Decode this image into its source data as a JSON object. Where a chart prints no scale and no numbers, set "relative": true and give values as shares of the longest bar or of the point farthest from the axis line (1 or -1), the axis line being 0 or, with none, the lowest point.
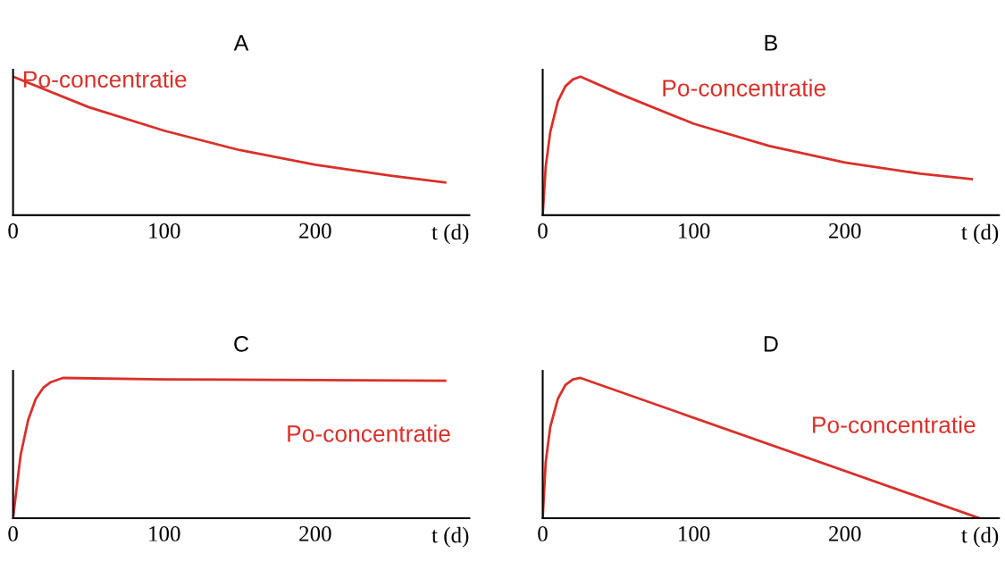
{
  "chart_data": [
    {
      "type": "line",
      "title": "A",
      "xlabel": "t (d)",
      "relative": true,
      "xlim": [
        0,
        302
      ],
      "xticks": [
        0,
        100,
        200
      ],
      "grid": false,
      "legend": false,
      "tick_labels": "x",
      "series": [
        {
          "name": "Po-concentratie",
          "color": "#d9302a",
          "x": [
            0,
            50,
            100,
            150,
            200,
            250,
            286
          ],
          "values": [
            1,
            0.78,
            0.61,
            0.47,
            0.365,
            0.285,
            0.236
          ]
        }
      ]
    },
    {
      "type": "line",
      "title": "B",
      "xlabel": "t (d)",
      "relative": true,
      "xlim": [
        0,
        302
      ],
      "xticks": [
        0,
        100,
        200
      ],
      "grid": false,
      "legend": false,
      "tick_labels": "x",
      "series": [
        {
          "name": "Po-concentratie",
          "color": "#d9302a",
          "x": [
            0,
            2,
            5,
            10,
            15,
            20,
            25,
            50,
            100,
            150,
            200,
            250,
            284
          ],
          "values": [
            0,
            0.35,
            0.6,
            0.82,
            0.93,
            0.98,
            1,
            0.88,
            0.66,
            0.5,
            0.38,
            0.3,
            0.26
          ]
        }
      ]
    },
    {
      "type": "line",
      "title": "C",
      "xlabel": "t (d)",
      "relative": true,
      "xlim": [
        0,
        302
      ],
      "xticks": [
        0,
        100,
        200
      ],
      "grid": false,
      "legend": false,
      "tick_labels": "x",
      "series": [
        {
          "name": "Po-concentratie",
          "color": "#d9302a",
          "x": [
            0,
            5,
            10,
            15,
            20,
            25,
            33,
            100,
            200,
            286
          ],
          "values": [
            0,
            0.45,
            0.7,
            0.85,
            0.93,
            0.97,
            1,
            0.99,
            0.985,
            0.98
          ]
        }
      ]
    },
    {
      "type": "line",
      "title": "D",
      "xlabel": "t (d)",
      "relative": true,
      "xlim": [
        0,
        302
      ],
      "xticks": [
        0,
        100,
        200
      ],
      "grid": false,
      "legend": false,
      "tick_labels": "x",
      "series": [
        {
          "name": "Po-concentratie",
          "color": "#d9302a",
          "x": [
            0,
            2,
            5,
            10,
            15,
            20,
            25,
            289
          ],
          "values": [
            0,
            0.4,
            0.65,
            0.85,
            0.95,
            0.99,
            1,
            0
          ]
        }
      ]
    }
  ]
}
